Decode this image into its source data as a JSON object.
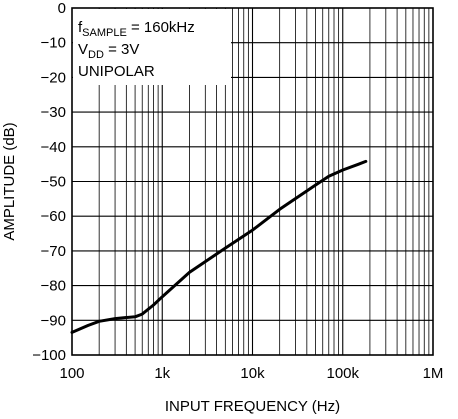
{
  "chart_data": {
    "type": "line",
    "title": "",
    "xlabel": "INPUT FREQUENCY (Hz)",
    "ylabel": "AMPLITUDE (dB)",
    "x_scale": "log",
    "xlim": [
      100,
      1000000
    ],
    "ylim": [
      -100,
      0
    ],
    "grid": true,
    "x_ticks": [
      100,
      1000,
      10000,
      100000,
      1000000
    ],
    "x_tick_labels": [
      "100",
      "1k",
      "10k",
      "100k",
      "1M"
    ],
    "y_ticks": [
      0,
      -10,
      -20,
      -30,
      -40,
      -50,
      -60,
      -70,
      -80,
      -90,
      -100
    ],
    "y_tick_labels": [
      "0",
      "−10",
      "−20",
      "−30",
      "−40",
      "−50",
      "−60",
      "−70",
      "−80",
      "−90",
      "−100"
    ],
    "annotations": [
      {
        "main": "f",
        "sub": "SAMPLE",
        "rest": " = 160kHz"
      },
      {
        "main": "V",
        "sub": "DD",
        "rest": " = 3V"
      },
      {
        "main": "UNIPOLAR",
        "sub": "",
        "rest": ""
      }
    ],
    "series": [
      {
        "x": [
          100,
          150,
          200,
          300,
          400,
          500,
          600,
          800,
          1000,
          2000,
          5000,
          10000,
          20000,
          50000,
          70000,
          100000,
          150000,
          180000
        ],
        "y": [
          -93.5,
          -91.5,
          -90.3,
          -89.5,
          -89.2,
          -89,
          -88.2,
          -85.6,
          -83.2,
          -76.2,
          -69.2,
          -64,
          -58,
          -51,
          -48.5,
          -46.7,
          -45,
          -44.2
        ]
      }
    ]
  }
}
